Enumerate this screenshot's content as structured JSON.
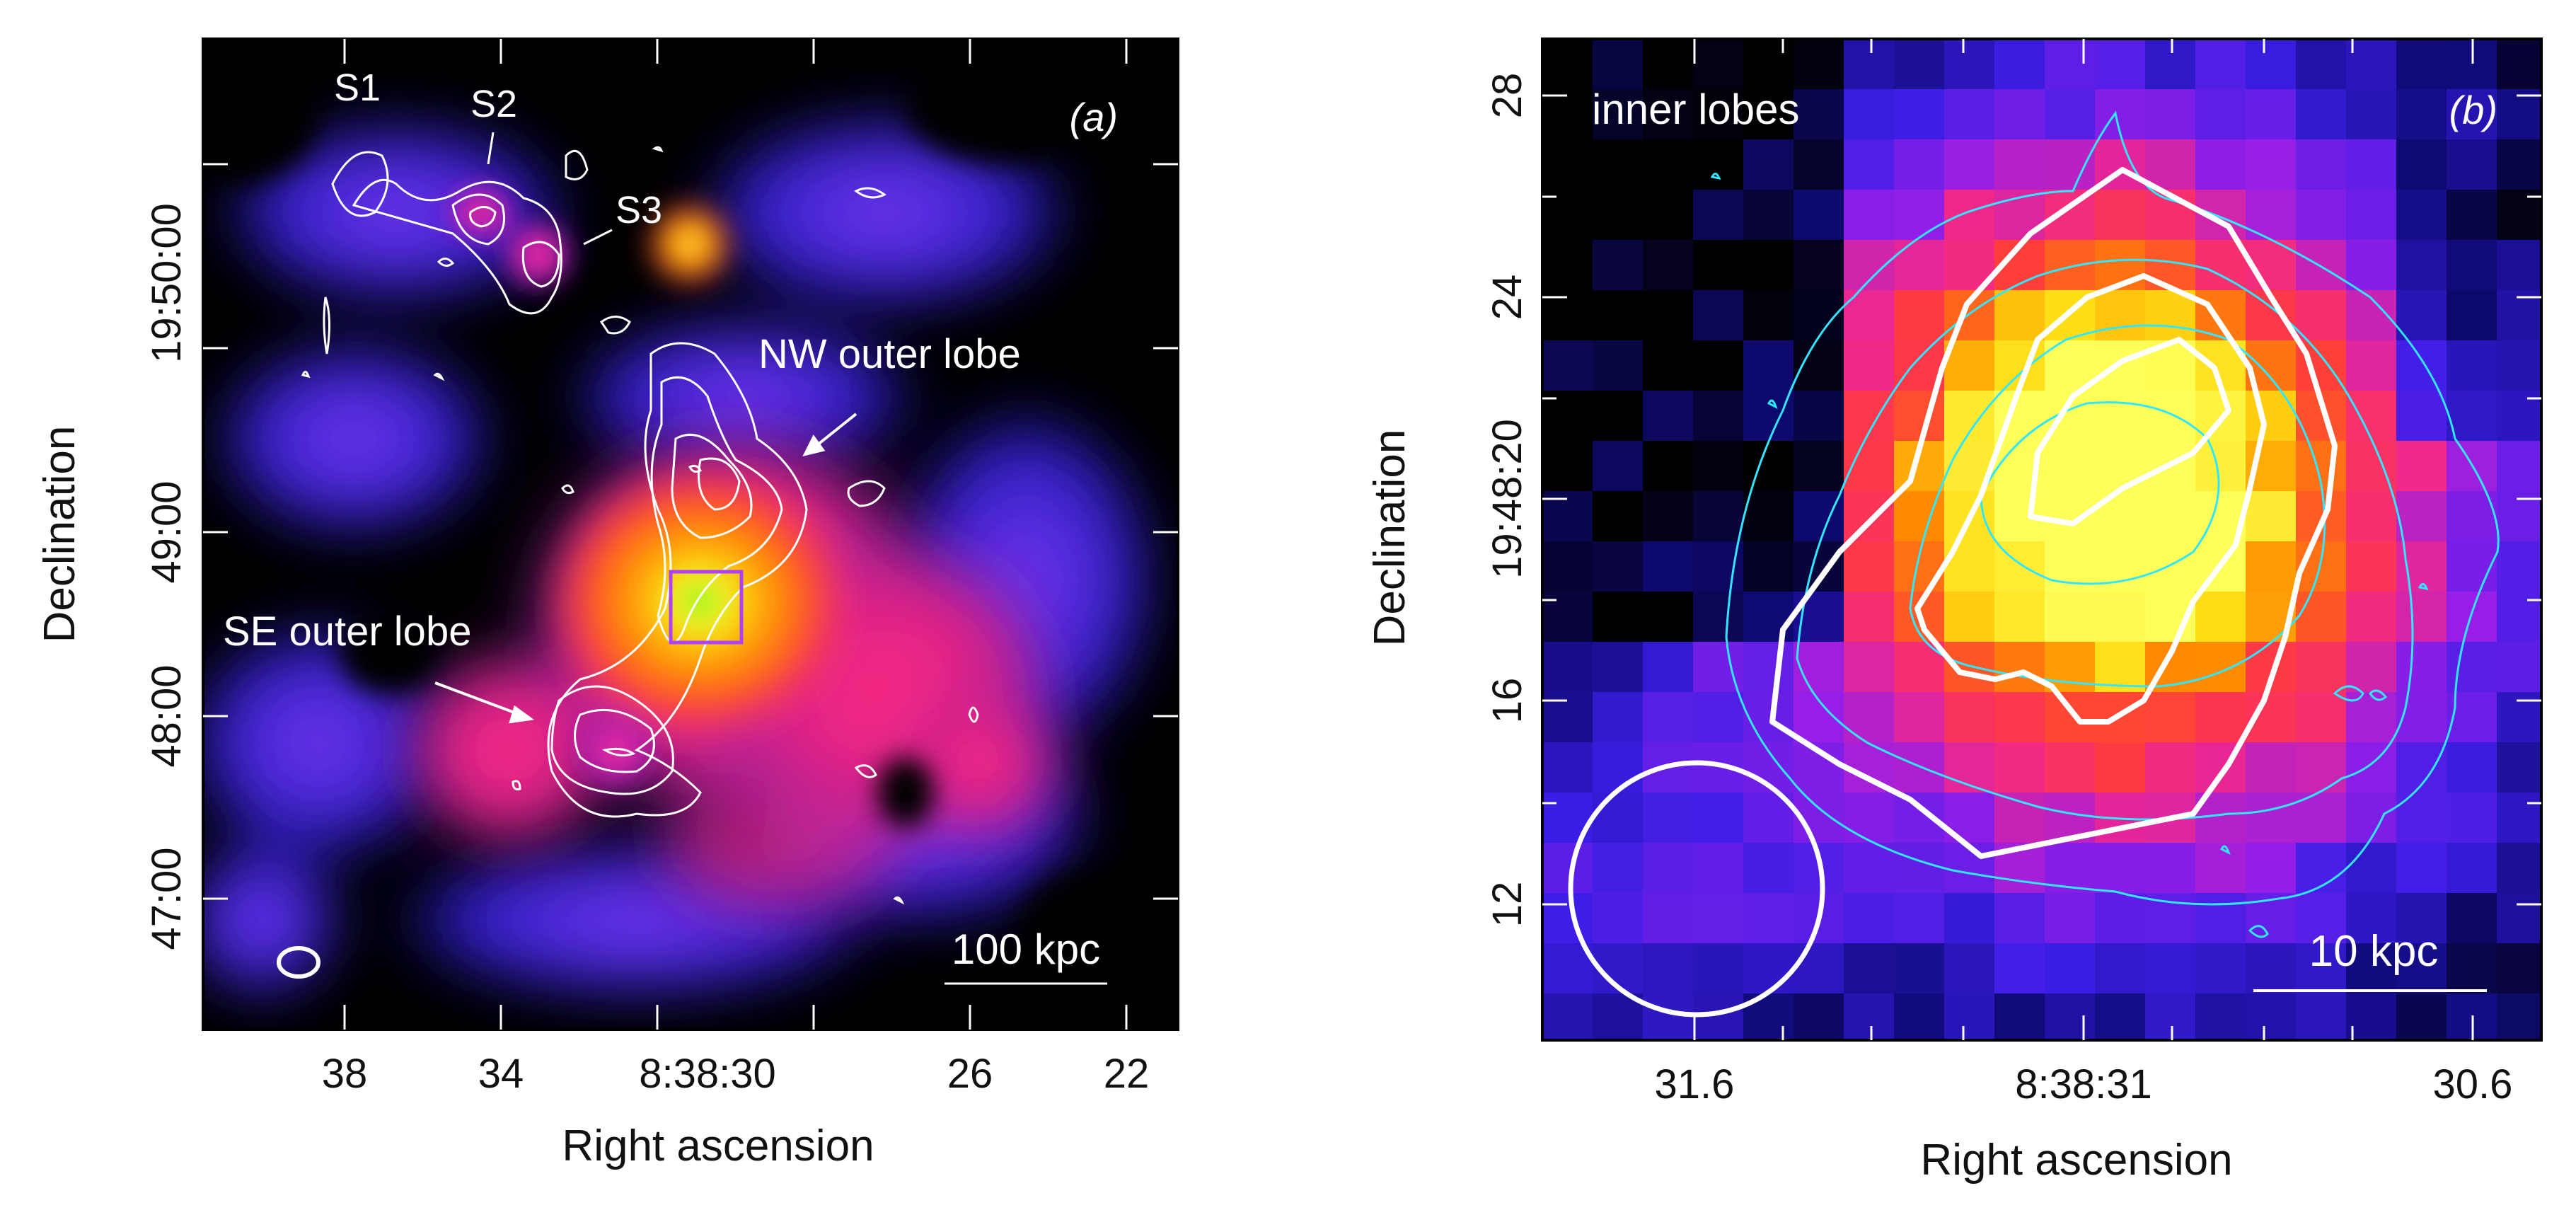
{
  "colors": {
    "background": "#000000",
    "white_contour": "#ffffff",
    "cyan_contour": "#33e6ff",
    "box": "#b040ff",
    "axis_text": "#111111"
  },
  "chart_data": [
    {
      "panel": "a",
      "type": "heatmap",
      "panel_label": "(a)",
      "xlabel": "Right ascension",
      "ylabel": "Declination",
      "x_ticks": [
        "38",
        "34",
        "8:38:30",
        "26",
        "22"
      ],
      "y_ticks": [
        "47:00",
        "48:00",
        "49:00",
        "19:50:00"
      ],
      "annotations": {
        "s1": "S1",
        "s2": "S2",
        "s3": "S3",
        "nw_lobe": "NW outer lobe",
        "se_lobe": "SE outer lobe"
      },
      "scale_bar": "100 kpc",
      "contours": "radio (white)"
    },
    {
      "panel": "b",
      "type": "heatmap",
      "panel_label": "(b)",
      "title": "inner lobes",
      "xlabel": "Right ascension",
      "ylabel": "Declination",
      "x_ticks": [
        "31.6",
        "8:38:31",
        "30.6"
      ],
      "y_ticks": [
        "12",
        "16",
        "19:48:20",
        "24",
        "28"
      ],
      "scale_bar": "10 kpc",
      "contours": "radio (white, cyan)"
    }
  ]
}
